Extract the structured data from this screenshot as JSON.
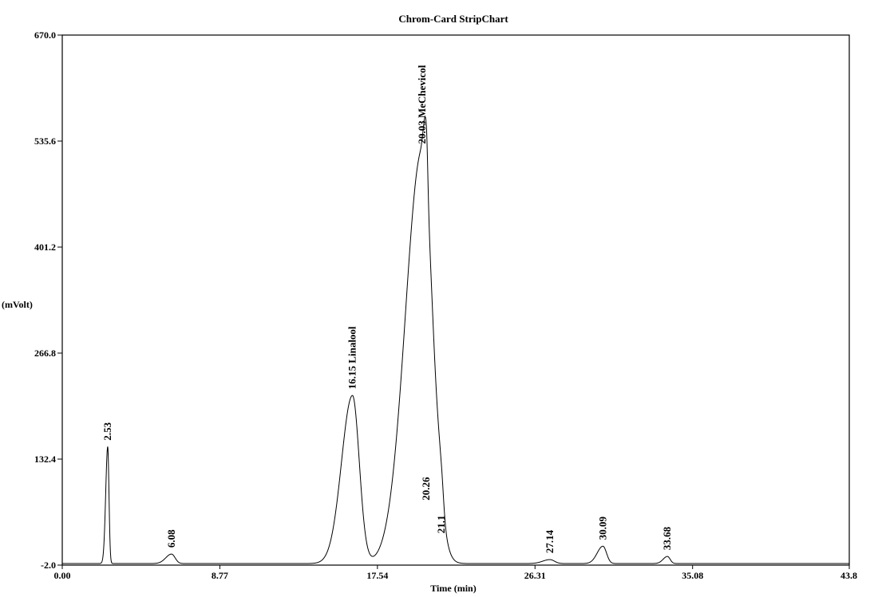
{
  "chart_data": {
    "type": "line",
    "title": "Chrom-Card StripChart",
    "xlabel": "Time (min)",
    "ylabel": "(mVolt)",
    "xlim": [
      0,
      43.8
    ],
    "ylim": [
      -2.0,
      670.0
    ],
    "x_ticks": [
      {
        "v": 0,
        "label": "0.00"
      },
      {
        "v": 8.77,
        "label": "8.77"
      },
      {
        "v": 17.54,
        "label": "17.54"
      },
      {
        "v": 26.31,
        "label": "26.31"
      },
      {
        "v": 35.08,
        "label": "35.08"
      },
      {
        "v": 43.8,
        "label": "43.8"
      }
    ],
    "y_ticks": [
      {
        "v": -2.0,
        "label": "-2.0"
      },
      {
        "v": 132.4,
        "label": "132.4"
      },
      {
        "v": 266.8,
        "label": "266.8"
      },
      {
        "v": 401.2,
        "label": "401.2"
      },
      {
        "v": 535.6,
        "label": "535.6"
      },
      {
        "v": 670.0,
        "label": "670.0"
      }
    ],
    "peaks": [
      {
        "rt": 2.53,
        "height": 148,
        "width": 0.07,
        "label": "2.53"
      },
      {
        "rt": 6.08,
        "height": 12,
        "width": 0.2,
        "label": "6.08"
      },
      {
        "rt": 16.15,
        "height": 213,
        "width": 0.38,
        "label": "16.15 Linalool"
      },
      {
        "rt": 20.03,
        "height": 524,
        "width": 0.58,
        "label": "20.03 MeChevicol"
      },
      {
        "rt": 20.26,
        "height": 72,
        "width": 0.08,
        "label": "20.26"
      },
      {
        "rt": 21.1,
        "height": 30,
        "width": 0.12,
        "label": "21.1"
      },
      {
        "rt": 27.14,
        "height": 5,
        "width": 0.25,
        "label": "27.14"
      },
      {
        "rt": 30.09,
        "height": 22,
        "width": 0.2,
        "label": "30.09"
      },
      {
        "rt": 33.68,
        "height": 9,
        "width": 0.15,
        "label": "33.68"
      }
    ]
  }
}
